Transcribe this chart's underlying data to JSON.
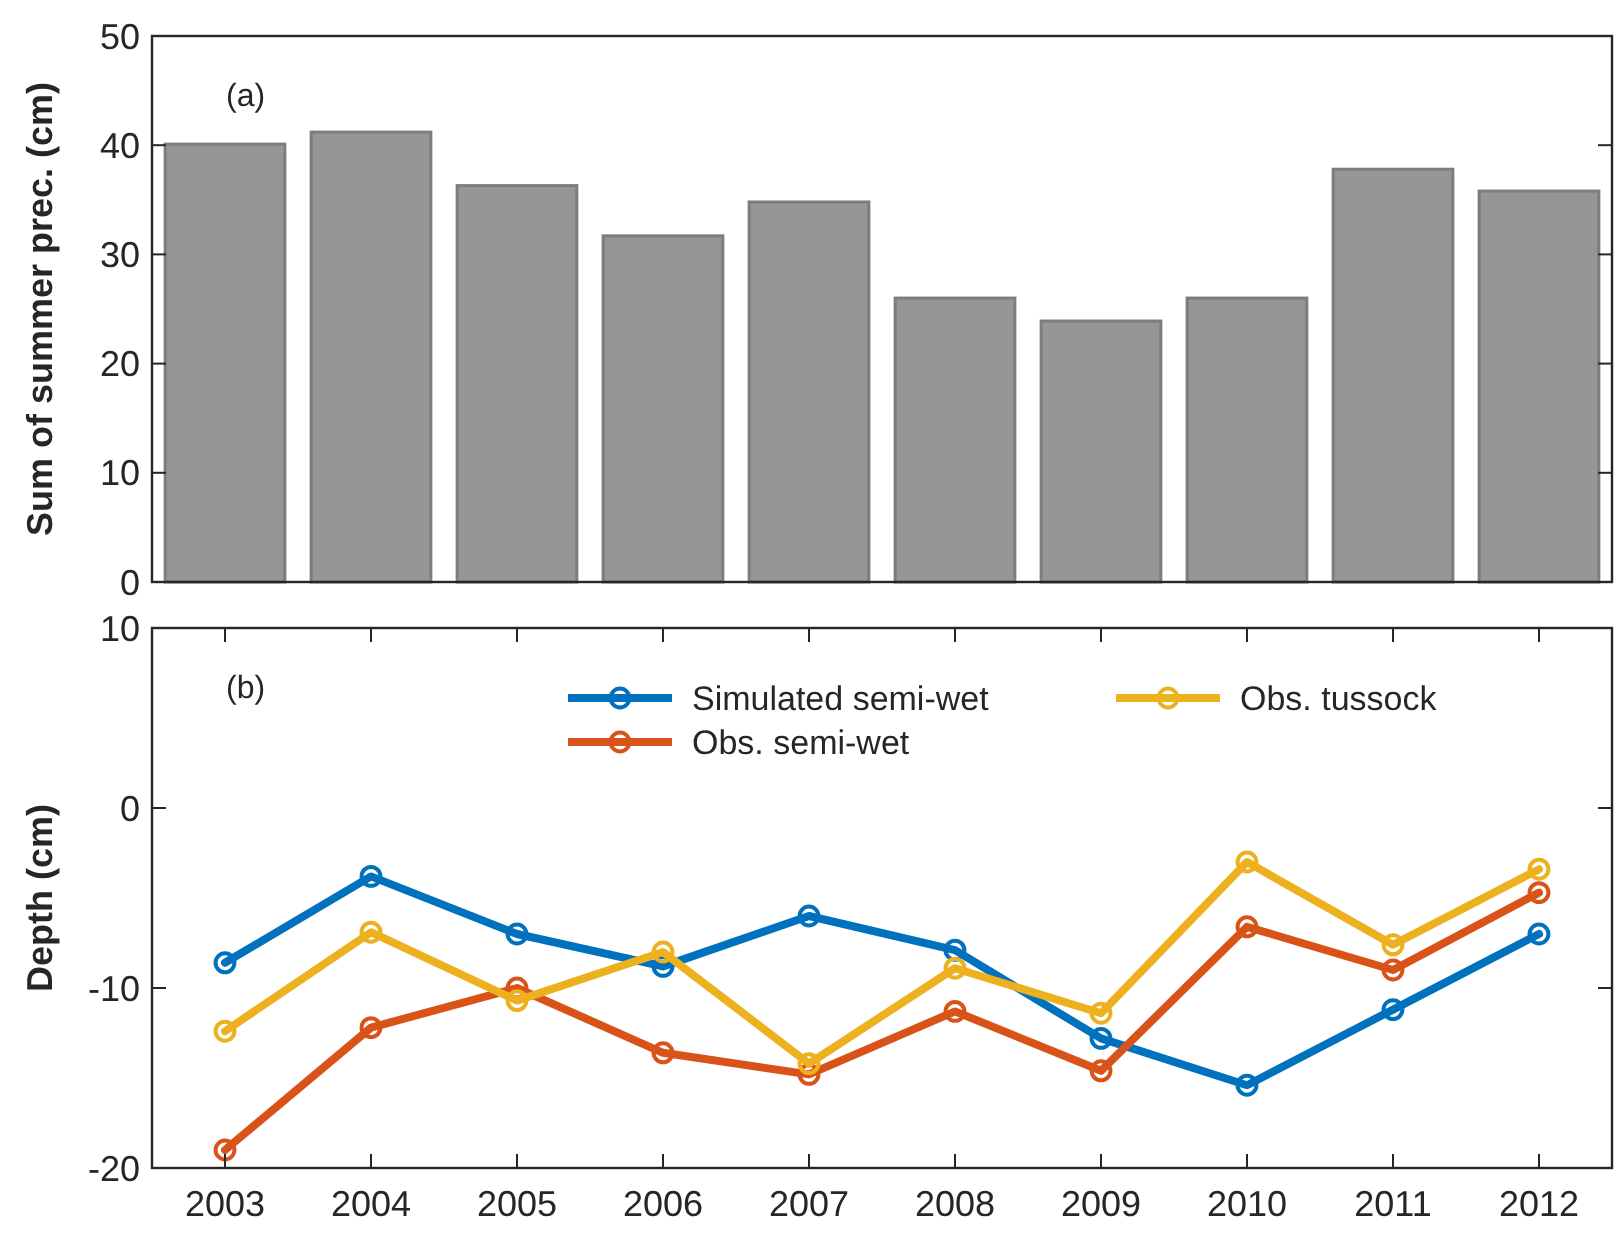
{
  "chart_data": [
    {
      "type": "bar",
      "categories": [
        null,
        null,
        null,
        null,
        null,
        null,
        null,
        null,
        null,
        null
      ],
      "values": [
        40.1,
        41.2,
        36.3,
        31.7,
        34.8,
        26.0,
        23.9,
        26.0,
        37.8,
        35.8
      ],
      "color": "#969696",
      "ylabel": "Sum of summer prec. (cm)",
      "ylim": [
        0,
        50
      ],
      "yticks": [
        0,
        10,
        20,
        30,
        40,
        50
      ],
      "annotations": [
        "(a)"
      ],
      "tick_labels": "y"
    },
    {
      "type": "line",
      "categories": [
        "2003",
        "2004",
        "2005",
        "2006",
        "2007",
        "2008",
        "2009",
        "2010",
        "2011",
        "2012"
      ],
      "ylabel": "Depth (cm)",
      "ylim": [
        -20,
        10
      ],
      "yticks": [
        -20,
        -10,
        0,
        10
      ],
      "annotations": [
        "(b)"
      ],
      "marker": "circle",
      "legend": "top",
      "series": [
        {
          "name": "Simulated semi-wet",
          "color": "#0072bd",
          "values": [
            -8.6,
            -3.8,
            -7.0,
            -8.8,
            -6.0,
            -7.9,
            -12.8,
            -15.4,
            -11.2,
            -7.0
          ]
        },
        {
          "name": "Obs. semi-wet",
          "color": "#d95319",
          "values": [
            -19.0,
            -12.2,
            -10.0,
            -13.6,
            -14.8,
            -11.3,
            -14.6,
            -6.6,
            -9.0,
            -4.7
          ]
        },
        {
          "name": "Obs. tussock",
          "color": "#edb120",
          "values": [
            -12.4,
            -6.9,
            -10.7,
            -8.0,
            -14.2,
            -8.9,
            -11.4,
            -3.0,
            -7.6,
            -3.4
          ]
        }
      ]
    }
  ]
}
